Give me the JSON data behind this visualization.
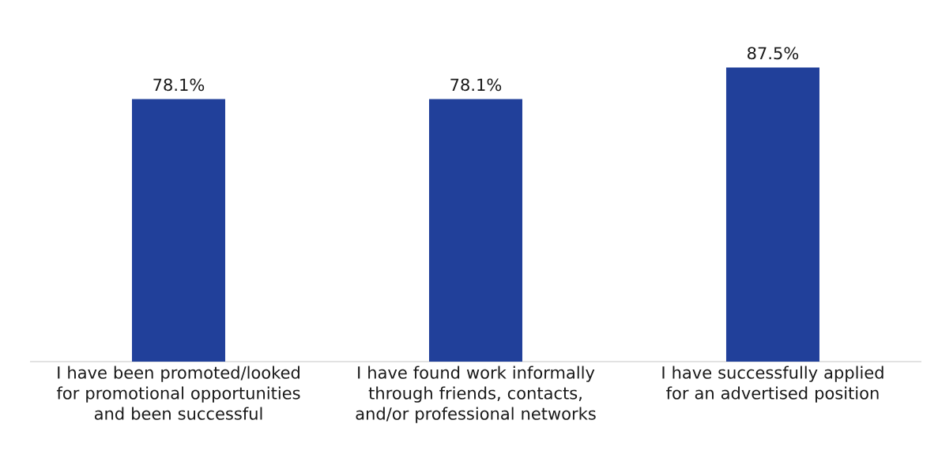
{
  "chart_data": {
    "type": "bar",
    "categories": [
      "I have been promoted/looked for promotional opportunities and been successful",
      "I have found work informally through friends, contacts, and/or professional networks",
      "I have successfully applied for an advertised position"
    ],
    "values": [
      78.1,
      78.1,
      87.5
    ],
    "value_labels": [
      "78.1%",
      "78.1%",
      "87.5%"
    ],
    "color": "#21409a"
  }
}
